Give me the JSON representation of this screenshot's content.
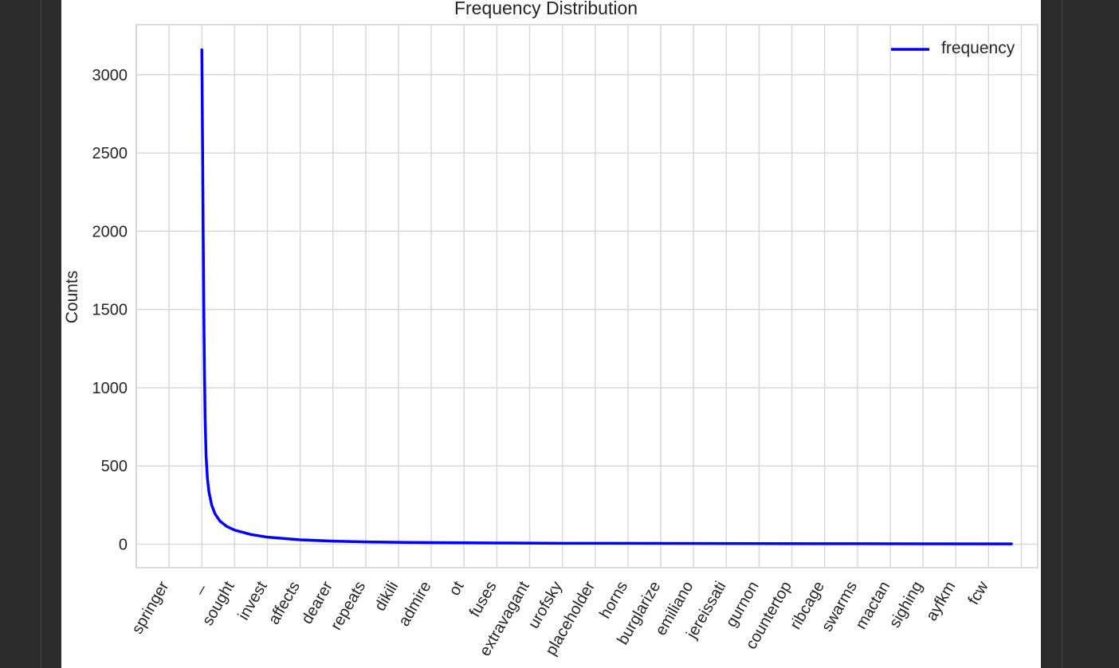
{
  "chart_data": {
    "type": "line",
    "title": "Frequency Distribution",
    "xlabel": "",
    "ylabel": "Counts",
    "categories": [
      "springer",
      "_",
      "sought",
      "invest",
      "affects",
      "dearer",
      "repeats",
      "dikili",
      "admire",
      "ot",
      "fuses",
      "extravagant",
      "urofsky",
      "placeholder",
      "horns",
      "burglarize",
      "emiliano",
      "jereissati",
      "gurnon",
      "countertop",
      "ribcage",
      "swarms",
      "mactan",
      "sighing",
      "ayfkm",
      "fcw"
    ],
    "yticks": [
      0,
      500,
      1000,
      1500,
      2000,
      2500,
      3000
    ],
    "ylim": [
      -150,
      3320
    ],
    "grid": true,
    "legend_position": "top-right",
    "series": [
      {
        "name": "frequency",
        "color": "#0000ff",
        "points": [
          {
            "x": 1.0,
            "y": 3160
          },
          {
            "x": 1.02,
            "y": 2600
          },
          {
            "x": 1.04,
            "y": 2000
          },
          {
            "x": 1.06,
            "y": 1500
          },
          {
            "x": 1.08,
            "y": 1100
          },
          {
            "x": 1.1,
            "y": 800
          },
          {
            "x": 1.13,
            "y": 560
          },
          {
            "x": 1.17,
            "y": 420
          },
          {
            "x": 1.22,
            "y": 330
          },
          {
            "x": 1.3,
            "y": 250
          },
          {
            "x": 1.4,
            "y": 195
          },
          {
            "x": 1.55,
            "y": 148
          },
          {
            "x": 1.75,
            "y": 115
          },
          {
            "x": 2.0,
            "y": 90
          },
          {
            "x": 2.5,
            "y": 62
          },
          {
            "x": 3.0,
            "y": 45
          },
          {
            "x": 4.0,
            "y": 28
          },
          {
            "x": 5.0,
            "y": 20
          },
          {
            "x": 6.0,
            "y": 15
          },
          {
            "x": 7.0,
            "y": 12
          },
          {
            "x": 8.0,
            "y": 10
          },
          {
            "x": 10.0,
            "y": 8
          },
          {
            "x": 12.0,
            "y": 6
          },
          {
            "x": 15.0,
            "y": 5
          },
          {
            "x": 18.0,
            "y": 4
          },
          {
            "x": 21.0,
            "y": 3
          },
          {
            "x": 25.7,
            "y": 2
          }
        ]
      }
    ]
  }
}
